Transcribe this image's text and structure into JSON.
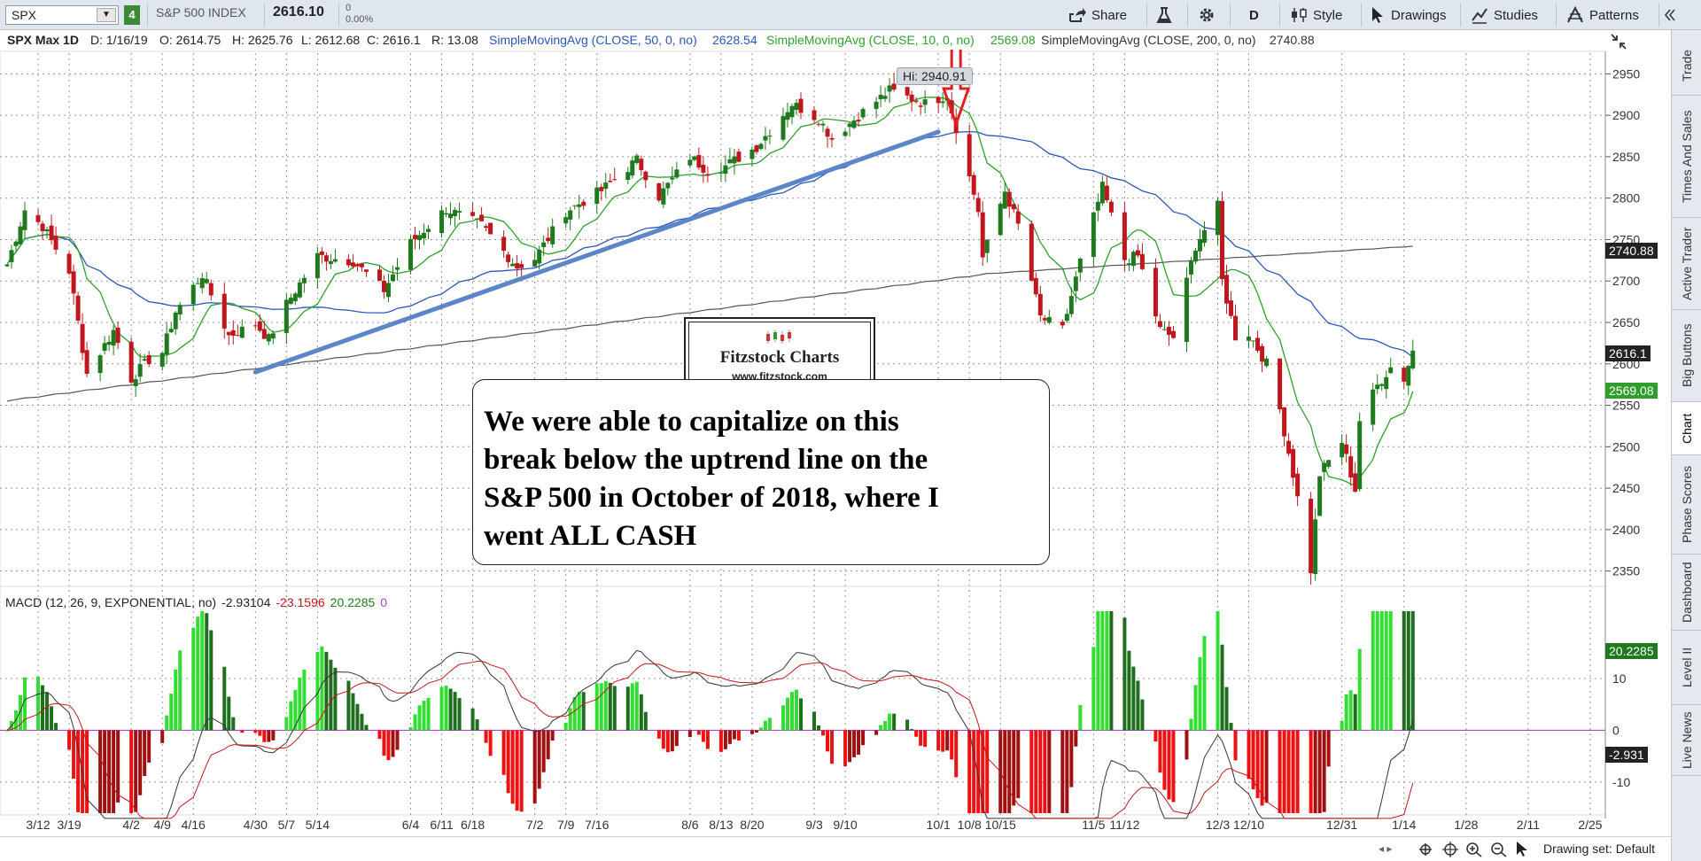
{
  "toolbar": {
    "symbol": "SPX",
    "link_num": "4",
    "index_name": "S&P 500 INDEX",
    "last_price": "2616.10",
    "change": "0",
    "change_pct": "0.00%",
    "share": "Share",
    "aggregation": "D",
    "style": "Style",
    "drawings": "Drawings",
    "studies": "Studies",
    "patterns": "Patterns"
  },
  "studies_line": {
    "symbol_period": "SPX Max 1D",
    "date": "D: 1/16/19",
    "open": "O: 2614.75",
    "high": "H: 2625.76",
    "low": "L: 2612.68",
    "close": "C: 2616.1",
    "range": "R: 13.08",
    "sma50_label": "SimpleMovingAvg (CLOSE, 50, 0, no)",
    "sma50_val": "2628.54",
    "sma10_label": "SimpleMovingAvg (CLOSE, 10, 0, no)",
    "sma10_val": "2569.08",
    "sma200_label": "SimpleMovingAvg (CLOSE, 200, 0, no)",
    "sma200_val": "2740.88"
  },
  "colors": {
    "up": "#1f7a1f",
    "down": "#c0171e",
    "sma50": "#2d56b5",
    "sma10": "#2f9e2f",
    "sma200": "#555555",
    "trendline": "#5d86c9",
    "arrow": "#e02020",
    "macd_up": "#33dd33",
    "macd_up_dark": "#1e6e1e",
    "macd_down": "#ee1111",
    "macd_down_dark": "#a01010",
    "zero": "#aa44cc"
  },
  "right_tabs": [
    "Trade",
    "Times And Sales",
    "Active Trader",
    "Big Buttons",
    "Chart",
    "Phase Scores",
    "Dashboard",
    "Level II",
    "Live News"
  ],
  "active_tab": "Chart",
  "hi_label": "Hi: 2940.91",
  "logo": {
    "title": "Fitzstock Charts",
    "url": "www.fitzstock.com"
  },
  "annotation": "We were able to capitalize on this\nbreak below the uptrend line on the\nS&P 500 in October of 2018, where I\nwent  ALL CASH",
  "badges": {
    "sma200": "2740.88",
    "close": "2616.1",
    "sma10": "2569.08",
    "macd_hist": "20.2285",
    "macd_val": "-2.931"
  },
  "macd_header": {
    "label": "MACD (12, 26, 9, EXPONENTIAL, no)",
    "value": "-2.93104",
    "avg": "-23.1596",
    "diff": "20.2285",
    "zero": "0"
  },
  "bottom": {
    "drawing_set": "Drawing set: Default"
  },
  "chart_data": {
    "type": "candlestick",
    "title": "",
    "price_axis": {
      "ylim": [
        2325,
        2975
      ],
      "ticks": [
        2350,
        2400,
        2450,
        2500,
        2550,
        2600,
        2650,
        2700,
        2750,
        2800,
        2850,
        2900,
        2950
      ]
    },
    "macd_axis": {
      "ylim": [
        -16,
        23
      ],
      "ticks": [
        -10,
        0,
        10
      ]
    },
    "date_ticks": [
      "3/12",
      "3/19",
      "4/2",
      "4/9",
      "4/16",
      "4/30",
      "5/7",
      "5/14",
      "6/4",
      "6/11",
      "6/18",
      "7/2",
      "7/9",
      "7/16",
      "8/6",
      "8/13",
      "8/20",
      "9/3",
      "9/10",
      "10/1",
      "10/8",
      "10/15",
      "11/5",
      "11/12",
      "12/3",
      "12/10",
      "12/31",
      "1/14",
      "1/28",
      "2/11",
      "2/25"
    ],
    "period": {
      "start": "2018-03-05",
      "end": "2019-01-16",
      "projected_end": "2019-02-28"
    },
    "keypoints": [
      {
        "date": "2018-03-05",
        "close": 2720
      },
      {
        "date": "2018-03-09",
        "close": 2786
      },
      {
        "date": "2018-03-13",
        "close": 2766
      },
      {
        "date": "2018-03-19",
        "close": 2712
      },
      {
        "date": "2018-03-23",
        "close": 2588
      },
      {
        "date": "2018-03-29",
        "close": 2640
      },
      {
        "date": "2018-04-02",
        "close": 2582
      },
      {
        "date": "2018-04-06",
        "close": 2605
      },
      {
        "date": "2018-04-09",
        "close": 2614
      },
      {
        "date": "2018-04-12",
        "close": 2663
      },
      {
        "date": "2018-04-18",
        "close": 2708
      },
      {
        "date": "2018-04-24",
        "close": 2634
      },
      {
        "date": "2018-04-30",
        "close": 2648
      },
      {
        "date": "2018-05-03",
        "close": 2630
      },
      {
        "date": "2018-05-07",
        "close": 2672
      },
      {
        "date": "2018-05-14",
        "close": 2730
      },
      {
        "date": "2018-05-22",
        "close": 2724
      },
      {
        "date": "2018-05-29",
        "close": 2689
      },
      {
        "date": "2018-06-04",
        "close": 2746
      },
      {
        "date": "2018-06-12",
        "close": 2787
      },
      {
        "date": "2018-06-20",
        "close": 2767
      },
      {
        "date": "2018-06-28",
        "close": 2717
      },
      {
        "date": "2018-07-02",
        "close": 2727
      },
      {
        "date": "2018-07-09",
        "close": 2784
      },
      {
        "date": "2018-07-17",
        "close": 2809
      },
      {
        "date": "2018-07-25",
        "close": 2846
      },
      {
        "date": "2018-07-30",
        "close": 2802
      },
      {
        "date": "2018-08-06",
        "close": 2850
      },
      {
        "date": "2018-08-10",
        "close": 2833
      },
      {
        "date": "2018-08-14",
        "close": 2839
      },
      {
        "date": "2018-08-21",
        "close": 2862
      },
      {
        "date": "2018-08-29",
        "close": 2914
      },
      {
        "date": "2018-09-04",
        "close": 2896
      },
      {
        "date": "2018-09-07",
        "close": 2872
      },
      {
        "date": "2018-09-14",
        "close": 2904
      },
      {
        "date": "2018-09-20",
        "close": 2930
      },
      {
        "date": "2018-09-28",
        "close": 2914
      },
      {
        "date": "2018-10-03",
        "close": 2925
      },
      {
        "date": "2018-10-05",
        "close": 2885
      },
      {
        "date": "2018-10-10",
        "close": 2785
      },
      {
        "date": "2018-10-11",
        "close": 2728
      },
      {
        "date": "2018-10-16",
        "close": 2809
      },
      {
        "date": "2018-10-19",
        "close": 2767
      },
      {
        "date": "2018-10-24",
        "close": 2656
      },
      {
        "date": "2018-10-29",
        "close": 2641
      },
      {
        "date": "2018-11-02",
        "close": 2723
      },
      {
        "date": "2018-11-07",
        "close": 2813
      },
      {
        "date": "2018-11-12",
        "close": 2726
      },
      {
        "date": "2018-11-15",
        "close": 2730
      },
      {
        "date": "2018-11-20",
        "close": 2641
      },
      {
        "date": "2018-11-23",
        "close": 2632
      },
      {
        "date": "2018-11-28",
        "close": 2743
      },
      {
        "date": "2018-12-03",
        "close": 2790
      },
      {
        "date": "2018-12-04",
        "close": 2700
      },
      {
        "date": "2018-12-07",
        "close": 2633
      },
      {
        "date": "2018-12-10",
        "close": 2637
      },
      {
        "date": "2018-12-14",
        "close": 2600
      },
      {
        "date": "2018-12-17",
        "close": 2545
      },
      {
        "date": "2018-12-20",
        "close": 2467
      },
      {
        "date": "2018-12-24",
        "close": 2351
      },
      {
        "date": "2018-12-26",
        "close": 2467
      },
      {
        "date": "2018-12-31",
        "close": 2506
      },
      {
        "date": "2019-01-03",
        "close": 2448
      },
      {
        "date": "2019-01-04",
        "close": 2532
      },
      {
        "date": "2019-01-08",
        "close": 2574
      },
      {
        "date": "2019-01-11",
        "close": 2596
      },
      {
        "date": "2019-01-14",
        "close": 2582
      },
      {
        "date": "2019-01-16",
        "close": 2616
      }
    ],
    "hi": 2940.91,
    "trendline": [
      {
        "date": "2018-04-30",
        "price": 2590
      },
      {
        "date": "2018-10-01",
        "price": 2880
      }
    ],
    "sma_last": {
      "sma10": 2569.08,
      "sma50": 2628.54,
      "sma200": 2740.88
    },
    "series": [
      {
        "name": "SimpleMovingAvg (CLOSE, 50, 0, no)"
      },
      {
        "name": "SimpleMovingAvg (CLOSE, 10, 0, no)"
      },
      {
        "name": "SimpleMovingAvg (CLOSE, 200, 0, no)"
      },
      {
        "name": "MACD (12, 26, 9, EXPONENTIAL, no)"
      }
    ]
  }
}
